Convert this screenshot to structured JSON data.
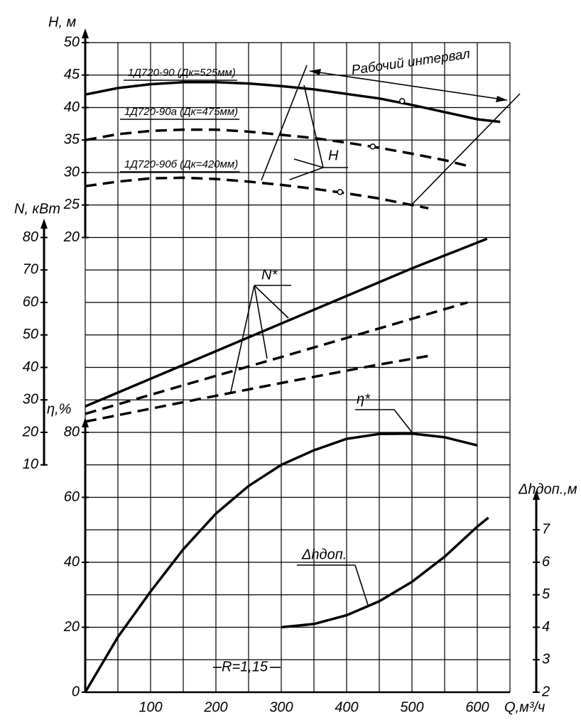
{
  "chart_data": {
    "type": "line",
    "x_label": "Q,м³/ч",
    "xlim": [
      0,
      650
    ],
    "xticks": [
      100,
      200,
      300,
      400,
      500,
      600
    ],
    "xgrid": [
      0,
      50,
      100,
      150,
      200,
      250,
      300,
      350,
      400,
      450,
      500,
      550,
      600,
      650
    ],
    "grid": true,
    "axes": [
      {
        "label": "H, м",
        "lim": [
          -50,
          50
        ],
        "ticks": [
          20,
          25,
          30,
          35,
          40,
          45,
          50
        ],
        "grid_step": 5
      },
      {
        "label": "N, кВт",
        "lim": [
          -60,
          140
        ],
        "ticks": [
          10,
          20,
          30,
          40,
          50,
          60,
          70,
          80
        ]
      },
      {
        "label": "η,%",
        "lim": [
          0,
          200
        ],
        "ticks": [
          0,
          20,
          40,
          60,
          80
        ]
      },
      {
        "label": "Δhдоп.,м",
        "lim": [
          2,
          22
        ],
        "ticks": [
          2,
          3,
          4,
          5,
          6,
          7
        ]
      }
    ],
    "series": [
      {
        "label": "1Д720-90 (Дк=525мм)",
        "axis": 0,
        "style": "solid",
        "color": "#000000",
        "x": [
          0,
          50,
          100,
          150,
          200,
          250,
          300,
          350,
          400,
          450,
          500,
          550,
          600,
          635
        ],
        "values": [
          42,
          43,
          43.6,
          43.9,
          43.9,
          43.7,
          43.3,
          42.8,
          42.1,
          41.4,
          40.4,
          39.3,
          38.2,
          37.8
        ],
        "points": [
          {
            "x": 485,
            "y": 41
          }
        ]
      },
      {
        "label": "1Д720-90а (Дк=475мм)",
        "axis": 0,
        "style": "dashed",
        "color": "#000000",
        "x": [
          0,
          50,
          100,
          150,
          200,
          250,
          300,
          350,
          400,
          450,
          500,
          550,
          590
        ],
        "values": [
          35,
          35.9,
          36.4,
          36.6,
          36.6,
          36.3,
          35.8,
          35.3,
          34.6,
          33.8,
          32.9,
          31.9,
          30.9
        ],
        "points": [
          {
            "x": 440,
            "y": 34
          }
        ]
      },
      {
        "label": "1Д720-90б (Дк=420мм)",
        "axis": 0,
        "style": "dashed",
        "color": "#000000",
        "x": [
          0,
          50,
          100,
          150,
          200,
          250,
          300,
          350,
          400,
          450,
          500,
          525
        ],
        "values": [
          27.9,
          28.6,
          29.1,
          29.2,
          29.0,
          28.6,
          28.1,
          27.5,
          26.8,
          26.0,
          25.0,
          24.5
        ],
        "points": [
          {
            "x": 390,
            "y": 27
          }
        ]
      },
      {
        "axis": 1,
        "style": "solid",
        "color": "#000000",
        "x": [
          0,
          100,
          200,
          300,
          400,
          500,
          615
        ],
        "values": [
          28,
          36.5,
          45,
          53.5,
          62,
          70.5,
          79.6
        ]
      },
      {
        "axis": 1,
        "style": "dashed",
        "color": "#000000",
        "x": [
          0,
          150,
          300,
          450,
          585
        ],
        "values": [
          25.7,
          34.5,
          43.2,
          52,
          60
        ]
      },
      {
        "axis": 1,
        "style": "dashed",
        "color": "#000000",
        "x": [
          0,
          150,
          300,
          450,
          530
        ],
        "values": [
          23.3,
          29.3,
          35.2,
          40.9,
          43.7
        ]
      },
      {
        "axis": 2,
        "style": "solid",
        "color": "#000000",
        "x": [
          0,
          50,
          100,
          150,
          200,
          250,
          300,
          350,
          400,
          450,
          500,
          550,
          600
        ],
        "values": [
          0,
          17,
          31,
          44,
          55,
          63.5,
          70,
          74.5,
          78,
          79.5,
          79.6,
          78.5,
          76
        ]
      },
      {
        "axis": 3,
        "style": "solid",
        "color": "#000000",
        "x": [
          300,
          350,
          400,
          450,
          500,
          550,
          600,
          617
        ],
        "values": [
          4.0,
          4.1,
          4.37,
          4.8,
          5.4,
          6.17,
          7.1,
          7.37
        ]
      }
    ],
    "annotations": [
      "Рабочий интервал",
      "H",
      "N*",
      "η*",
      "Δhдоп.",
      "R=1,15"
    ]
  }
}
